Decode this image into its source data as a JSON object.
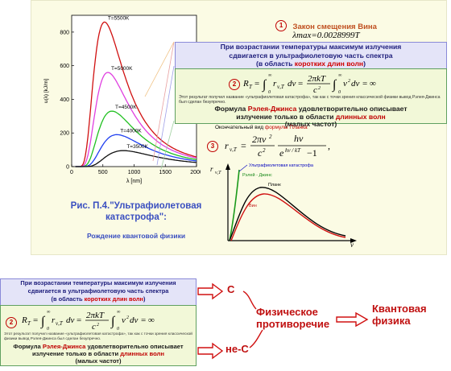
{
  "slide": {
    "item1_num": "1",
    "wien_title": "Закон смещения Вина",
    "wien_formula": "λmax=0.0028999T",
    "uv_line1": "При возрастании температуры максимум излучения",
    "uv_line2": "сдвигается в ультрафиолетовую часть спектра",
    "uv_line3a": "(в область ",
    "uv_line3b": "коротких длин волн",
    "uv_line3c": ")",
    "item2_num": "2",
    "note_text": "Этот результат получил название «ультрафиолетовая катастрофа», так как с точки зрения классической физики вывод Рэлея-Джинса был сделан безупречно.",
    "rj_line1a": "Формула ",
    "rj_line1b": "Рэлея-Джинса",
    "rj_line1c": " удовлетворительно описывает",
    "rj_line2a": "излучение только в области ",
    "rj_line2b": "длинных волн",
    "rj_line3": "(малых частот)",
    "planck_label_a": "Окончательный вид ",
    "planck_label_b": "формулы Планка",
    "item3_num": "3",
    "caption": "Рис. П.4.\"Ультрафиолетовая катастрофа\":",
    "subcaption": "Рождение квантовой физики",
    "uv_catastrophe_label": "Ультрафиолетовая катастрофа",
    "rj_curve_label": "Рэлей - Джинс",
    "planck_curve_label": "Планк",
    "wien_curve_label": "Вин",
    "small_y_axis": "r",
    "small_y_sub": "ν,T",
    "small_x_axis": "ν"
  },
  "chart_data": {
    "type": "line",
    "xlabel": "λ [nm]",
    "ylabel": "u(λ) [kJ/m]",
    "xlim": [
      0,
      2000
    ],
    "ylim": [
      0,
      900
    ],
    "xticks": [
      0,
      500,
      1000,
      1500,
      2000
    ],
    "yticks": [
      0,
      200,
      400,
      600,
      800
    ],
    "series": [
      {
        "name": "T=5500K",
        "peak_x": 527,
        "peak_y": 860,
        "color": "#d01010"
      },
      {
        "name": "T=5000K",
        "peak_x": 580,
        "peak_y": 560,
        "color": "#e040e0"
      },
      {
        "name": "T=4500K",
        "peak_x": 645,
        "peak_y": 330,
        "color": "#20c020"
      },
      {
        "name": "T=4000K",
        "peak_x": 725,
        "peak_y": 190,
        "color": "#2040f0"
      },
      {
        "name": "T=3500K",
        "peak_x": 830,
        "peak_y": 95,
        "color": "#111111"
      }
    ]
  },
  "bottom": {
    "uv_line1": "При возрастании температуры максимум излучения",
    "uv_line2": "сдвигается в ультрафиолетовую часть спектра",
    "uv_line3a": "(в область ",
    "uv_line3b": "коротких длин волн",
    "uv_line3c": ")",
    "item2_num": "2",
    "note_text": "Этот результат получил название «ультрафиолетовая катастрофа», так как с точки зрения классической физики вывод Рэлея-Джинса был сделан безупречно.",
    "rj_line1a": "Формула ",
    "rj_line1b": "Рэлея-Джинса",
    "rj_line1c": " удовлетворительно описывает",
    "rj_line2a": "излучение только в области ",
    "rj_line2b": "длинных волн",
    "rj_line3": "(малых частот)",
    "label_c": "С",
    "label_not_c": "не-С",
    "contradiction": "Физическое противоречие",
    "quantum": "Квантовая физика"
  }
}
